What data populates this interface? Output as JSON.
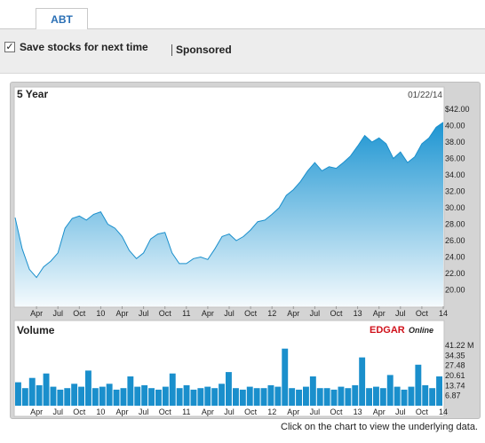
{
  "tabs": [
    {
      "label": "ABT"
    }
  ],
  "options": {
    "save_label": "Save stocks for next time",
    "save_checked": true,
    "sponsored_label": "Sponsored"
  },
  "chart": {
    "colors": {
      "line": "#1a8fcc",
      "fill_top": "#1d95d2",
      "fill_bottom": "#f4fafd",
      "volume": "#1a8fcc",
      "frame": "#d4d4d4"
    },
    "footnote": "Click on the chart to view the underlying data.",
    "logo": {
      "brand": "EDGAR",
      "suffix": "Online"
    }
  },
  "chart_data": [
    {
      "type": "area",
      "title": "5 Year",
      "date": "01/22/14",
      "ylim": [
        18.0,
        42.0
      ],
      "y_ticks": [
        "$42.00",
        "40.00",
        "38.00",
        "36.00",
        "34.00",
        "32.00",
        "30.00",
        "28.00",
        "26.00",
        "24.00",
        "22.00",
        "20.00"
      ],
      "x_ticks": [
        "Apr",
        "Jul",
        "Oct",
        "10",
        "Apr",
        "Jul",
        "Oct",
        "11",
        "Apr",
        "Jul",
        "Oct",
        "12",
        "Apr",
        "Jul",
        "Oct",
        "13",
        "Apr",
        "Jul",
        "Oct",
        "14"
      ],
      "x": [
        "2009-01",
        "2009-02",
        "2009-03",
        "2009-04",
        "2009-05",
        "2009-06",
        "2009-07",
        "2009-08",
        "2009-09",
        "2009-10",
        "2009-11",
        "2009-12",
        "2010-01",
        "2010-02",
        "2010-03",
        "2010-04",
        "2010-05",
        "2010-06",
        "2010-07",
        "2010-08",
        "2010-09",
        "2010-10",
        "2010-11",
        "2010-12",
        "2011-01",
        "2011-02",
        "2011-03",
        "2011-04",
        "2011-05",
        "2011-06",
        "2011-07",
        "2011-08",
        "2011-09",
        "2011-10",
        "2011-11",
        "2011-12",
        "2012-01",
        "2012-02",
        "2012-03",
        "2012-04",
        "2012-05",
        "2012-06",
        "2012-07",
        "2012-08",
        "2012-09",
        "2012-10",
        "2012-11",
        "2012-12",
        "2013-01",
        "2013-02",
        "2013-03",
        "2013-04",
        "2013-05",
        "2013-06",
        "2013-07",
        "2013-08",
        "2013-09",
        "2013-10",
        "2013-11",
        "2013-12",
        "2014-01"
      ],
      "series": [
        {
          "values": [
            28.8,
            25.0,
            22.5,
            21.5,
            22.8,
            23.5,
            24.5,
            27.5,
            28.7,
            29.0,
            28.5,
            29.2,
            29.5,
            28.0,
            27.5,
            26.5,
            24.8,
            23.8,
            24.5,
            26.2,
            26.8,
            27.0,
            24.5,
            23.2,
            23.2,
            23.8,
            24.0,
            23.7,
            25.0,
            26.5,
            26.8,
            26.0,
            26.5,
            27.3,
            28.3,
            28.5,
            29.2,
            30.0,
            31.5,
            32.2,
            33.2,
            34.5,
            35.5,
            34.5,
            35.0,
            34.8,
            35.5,
            36.3,
            37.5,
            38.8,
            38.0,
            38.5,
            37.8,
            36.0,
            36.8,
            35.5,
            36.2,
            37.8,
            38.5,
            39.8,
            40.4
          ]
        }
      ]
    },
    {
      "type": "bar",
      "title": "Volume",
      "y_ticks": [
        "41.22 M",
        "34.35",
        "27.48",
        "20.61",
        "13.74",
        "6.87"
      ],
      "ylim": [
        0,
        41.22
      ],
      "x_ticks": [
        "Apr",
        "Jul",
        "Oct",
        "10",
        "Apr",
        "Jul",
        "Oct",
        "11",
        "Apr",
        "Jul",
        "Oct",
        "12",
        "Apr",
        "Jul",
        "Oct",
        "13",
        "Apr",
        "Jul",
        "Oct",
        "14"
      ],
      "x": [
        "2009-01",
        "2009-02",
        "2009-03",
        "2009-04",
        "2009-05",
        "2009-06",
        "2009-07",
        "2009-08",
        "2009-09",
        "2009-10",
        "2009-11",
        "2009-12",
        "2010-01",
        "2010-02",
        "2010-03",
        "2010-04",
        "2010-05",
        "2010-06",
        "2010-07",
        "2010-08",
        "2010-09",
        "2010-10",
        "2010-11",
        "2010-12",
        "2011-01",
        "2011-02",
        "2011-03",
        "2011-04",
        "2011-05",
        "2011-06",
        "2011-07",
        "2011-08",
        "2011-09",
        "2011-10",
        "2011-11",
        "2011-12",
        "2012-01",
        "2012-02",
        "2012-03",
        "2012-04",
        "2012-05",
        "2012-06",
        "2012-07",
        "2012-08",
        "2012-09",
        "2012-10",
        "2012-11",
        "2012-12",
        "2013-01",
        "2013-02",
        "2013-03",
        "2013-04",
        "2013-05",
        "2013-06",
        "2013-07",
        "2013-08",
        "2013-09",
        "2013-10",
        "2013-11",
        "2013-12",
        "2014-01"
      ],
      "values": [
        16,
        12,
        19,
        14,
        22,
        13,
        11,
        12,
        15,
        13,
        24,
        12,
        13,
        15,
        11,
        12,
        20,
        13,
        14,
        12,
        11,
        13,
        22,
        12,
        14,
        11,
        12,
        13,
        12,
        15,
        23,
        12,
        11,
        13,
        12,
        12,
        14,
        13,
        39,
        12,
        11,
        13,
        20,
        12,
        12,
        11,
        13,
        12,
        14,
        33,
        12,
        13,
        12,
        21,
        13,
        11,
        13,
        28,
        14,
        12,
        20
      ]
    }
  ]
}
